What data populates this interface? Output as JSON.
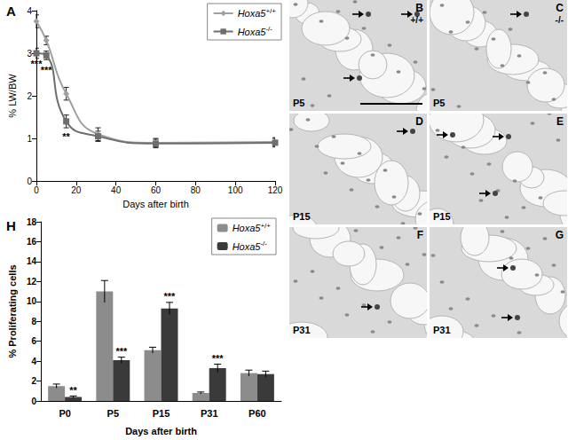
{
  "chart_data": [
    {
      "panel_label": "A",
      "type": "line",
      "x_label": "Days after birth",
      "y_label": "% LW/BW",
      "x": [
        0,
        5,
        15,
        31,
        60,
        120
      ],
      "series": [
        {
          "name": "Hoxa5+/+",
          "color": "#a0a0a0",
          "marker": "diamond",
          "line_style": "solid",
          "values": [
            3.75,
            3.3,
            2.05,
            1.1,
            0.9,
            0.92
          ],
          "errors": [
            0.15,
            0.1,
            0.15,
            0.15,
            0.1,
            0.1
          ]
        },
        {
          "name": "Hoxa5-/-",
          "color": "#6e6e6e",
          "marker": "square",
          "line_style": "solid",
          "values": [
            3.0,
            2.95,
            1.4,
            1.05,
            0.88,
            0.9
          ],
          "errors": [
            0.12,
            0.1,
            0.15,
            0.12,
            0.1,
            0.1
          ]
        }
      ],
      "xlim": [
        0,
        120
      ],
      "xticks": [
        0,
        20,
        40,
        60,
        80,
        100,
        120
      ],
      "ylim": [
        0,
        4
      ],
      "yticks": [
        0,
        1,
        2,
        3,
        4
      ],
      "grid": false,
      "legend": "upper right",
      "annotations": [
        {
          "text": "***",
          "x": 0,
          "y": 2.75
        },
        {
          "text": "***",
          "x": 5,
          "y": 2.6
        },
        {
          "text": "**",
          "x": 15,
          "y": 1.05
        }
      ]
    },
    {
      "panel_label": "H",
      "type": "bar",
      "x_label": "Days after birth",
      "y_label": "% Proliferating cells",
      "categories": [
        "P0",
        "P5",
        "P15",
        "P31",
        "P60"
      ],
      "series": [
        {
          "name": "Hoxa5+/+",
          "color": "#8c8c8c",
          "values": [
            1.5,
            11.0,
            5.1,
            0.8,
            2.8
          ],
          "errors": [
            0.2,
            1.1,
            0.3,
            0.1,
            0.3
          ]
        },
        {
          "name": "Hoxa5-/-",
          "color": "#3a3a3a",
          "values": [
            0.4,
            4.1,
            9.3,
            3.3,
            2.7
          ],
          "errors": [
            0.1,
            0.3,
            0.6,
            0.4,
            0.3
          ]
        }
      ],
      "ylim": [
        0,
        18
      ],
      "yticks": [
        0,
        2,
        4,
        6,
        8,
        10,
        12,
        14,
        16,
        18
      ],
      "grid": false,
      "legend": "upper right",
      "annotations": [
        {
          "text": "**",
          "category": "P0",
          "series": "Hoxa5-/-",
          "y": 0.6
        },
        {
          "text": "***",
          "category": "P5",
          "series": "Hoxa5-/-",
          "y": 4.5
        },
        {
          "text": "***",
          "category": "P15",
          "series": "Hoxa5-/-",
          "y": 10.0
        },
        {
          "text": "***",
          "category": "P31",
          "series": "Hoxa5-/-",
          "y": 3.8
        }
      ]
    }
  ],
  "micrographs": [
    {
      "panel": "B",
      "genotype": "+/+",
      "age": "P5"
    },
    {
      "panel": "C",
      "genotype": "-/-",
      "age": "P5"
    },
    {
      "panel": "D",
      "age": "P15"
    },
    {
      "panel": "E",
      "age": "P15"
    },
    {
      "panel": "F",
      "age": "P31"
    },
    {
      "panel": "G",
      "age": "P31"
    }
  ]
}
